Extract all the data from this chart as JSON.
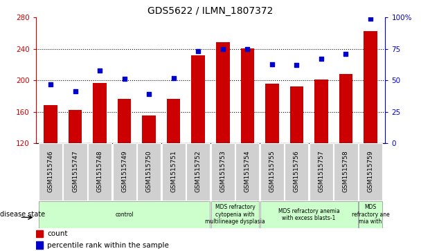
{
  "title": "GDS5622 / ILMN_1807372",
  "samples": [
    "GSM1515746",
    "GSM1515747",
    "GSM1515748",
    "GSM1515749",
    "GSM1515750",
    "GSM1515751",
    "GSM1515752",
    "GSM1515753",
    "GSM1515754",
    "GSM1515755",
    "GSM1515756",
    "GSM1515757",
    "GSM1515758",
    "GSM1515759"
  ],
  "counts": [
    168,
    162,
    197,
    176,
    155,
    176,
    232,
    249,
    241,
    196,
    192,
    201,
    208,
    263
  ],
  "percentiles": [
    47,
    41,
    58,
    51,
    39,
    52,
    73,
    75,
    75,
    63,
    62,
    67,
    71,
    99
  ],
  "ylim_left": [
    120,
    280
  ],
  "ylim_right": [
    0,
    100
  ],
  "yticks_left": [
    120,
    160,
    200,
    240,
    280
  ],
  "yticks_right": [
    0,
    25,
    50,
    75,
    100
  ],
  "bar_color": "#cc0000",
  "dot_color": "#0000cc",
  "bg_color": "#ffffff",
  "sample_box_color": "#d0d0d0",
  "disease_groups": [
    {
      "label": "control",
      "start": 0,
      "end": 7
    },
    {
      "label": "MDS refractory\ncytopenia with\nmultilineage dysplasia",
      "start": 7,
      "end": 9
    },
    {
      "label": "MDS refractory anemia\nwith excess blasts-1",
      "start": 9,
      "end": 13
    },
    {
      "label": "MDS\nrefractory ane\nmia with",
      "start": 13,
      "end": 14
    }
  ],
  "disease_color": "#ccffcc",
  "xlabel_disease": "disease state",
  "legend_count": "count",
  "legend_pct": "percentile rank within the sample",
  "title_fontsize": 10,
  "tick_fontsize": 6.5,
  "label_fontsize": 7,
  "grid_lines": [
    160,
    200,
    240
  ]
}
